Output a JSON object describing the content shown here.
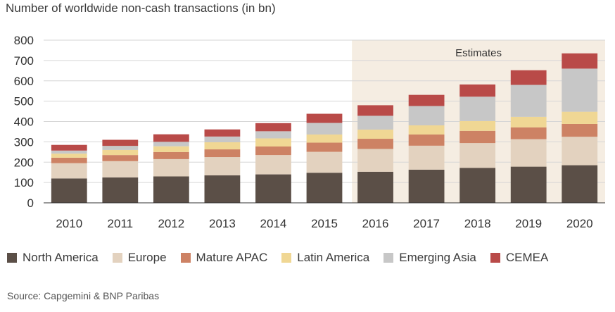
{
  "chart_data": {
    "type": "bar",
    "stacked": true,
    "title": "Number of worldwide non-cash transactions (in bn)",
    "categories": [
      "2010",
      "2011",
      "2012",
      "2013",
      "2014",
      "2015",
      "2016",
      "2017",
      "2018",
      "2019",
      "2020"
    ],
    "ylim": [
      0,
      800
    ],
    "yticks": [
      0,
      100,
      200,
      300,
      400,
      500,
      600,
      700,
      800
    ],
    "grid": true,
    "estimates_label": "Estimates",
    "estimates_from": "2016",
    "series": [
      {
        "name": "North America",
        "color": "#5b4f47",
        "values": [
          120,
          125,
          130,
          135,
          140,
          148,
          153,
          163,
          172,
          178,
          185
        ]
      },
      {
        "name": "Europe",
        "color": "#e3d2bf",
        "values": [
          75,
          80,
          85,
          90,
          95,
          103,
          112,
          118,
          122,
          135,
          140
        ]
      },
      {
        "name": "Mature APAC",
        "color": "#cd8264",
        "values": [
          27,
          30,
          35,
          38,
          42,
          45,
          50,
          55,
          60,
          58,
          63
        ]
      },
      {
        "name": "Latin America",
        "color": "#f0d794",
        "values": [
          20,
          25,
          28,
          35,
          40,
          40,
          45,
          45,
          48,
          52,
          60
        ]
      },
      {
        "name": "Emerging Asia",
        "color": "#c7c7c7",
        "values": [
          15,
          20,
          22,
          28,
          35,
          57,
          68,
          95,
          120,
          157,
          212
        ]
      },
      {
        "name": "CEMEA",
        "color": "#b94a48",
        "values": [
          28,
          30,
          37,
          35,
          40,
          45,
          52,
          55,
          60,
          72,
          75
        ]
      }
    ],
    "legend_position": "bottom"
  },
  "source": "Source: Capgemini & BNP Paribas"
}
